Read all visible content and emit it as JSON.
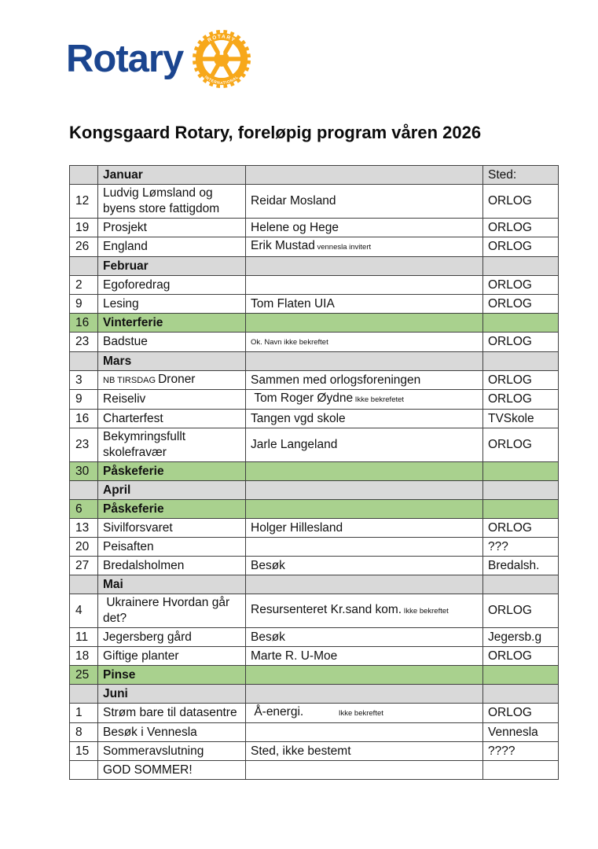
{
  "colors": {
    "rotary_blue": "#1b458f",
    "rotary_gold": "#f7a81b",
    "green": "#a9d18e",
    "gray": "#d9d9d9",
    "border": "#404040"
  },
  "logo": {
    "wordmark": "Rotary",
    "wheel_top_text": "ROTARY",
    "wheel_bottom_text": "INTERNATIONAL"
  },
  "title": "Kongsgaard Rotary, foreløpig program våren 2026",
  "table": {
    "columns": [
      "date",
      "topic",
      "speaker",
      "place"
    ],
    "rows": [
      {
        "style": "header",
        "cells": [
          {
            "t": ""
          },
          {
            "t": "Januar",
            "b": true
          },
          {
            "t": ""
          },
          {
            "t": "Sted:"
          }
        ]
      },
      {
        "style": "event",
        "cells": [
          {
            "t": "12"
          },
          {
            "t": "Ludvig Lømsland og byens store fattigdom"
          },
          {
            "t": "Reidar Mosland"
          },
          {
            "t": "ORLOG"
          }
        ]
      },
      {
        "style": "event",
        "cells": [
          {
            "t": "19"
          },
          {
            "t": "Prosjekt"
          },
          {
            "t": "Helene og Hege"
          },
          {
            "t": "ORLOG"
          }
        ]
      },
      {
        "style": "event",
        "cells": [
          {
            "t": "26"
          },
          {
            "t": "England"
          },
          {
            "t": "Erik Mustad",
            "small": "vennesla invitert"
          },
          {
            "t": "ORLOG"
          }
        ]
      },
      {
        "style": "month",
        "cells": [
          {
            "t": ""
          },
          {
            "t": "Februar",
            "b": true
          },
          {
            "t": ""
          },
          {
            "t": ""
          }
        ]
      },
      {
        "style": "event",
        "cells": [
          {
            "t": "2"
          },
          {
            "t": "Egoforedrag"
          },
          {
            "t": ""
          },
          {
            "t": "ORLOG"
          }
        ]
      },
      {
        "style": "event",
        "cells": [
          {
            "t": "9"
          },
          {
            "t": "Lesing"
          },
          {
            "t": "Tom Flaten UIA"
          },
          {
            "t": "ORLOG"
          }
        ]
      },
      {
        "style": "holiday",
        "cells": [
          {
            "t": "16"
          },
          {
            "t": "Vinterferie",
            "b": true
          },
          {
            "t": ""
          },
          {
            "t": ""
          }
        ]
      },
      {
        "style": "event",
        "cells": [
          {
            "t": "23"
          },
          {
            "t": "Badstue"
          },
          {
            "t": "Ok. Navn ikke bekreftet",
            "xs": true
          },
          {
            "t": "ORLOG"
          }
        ]
      },
      {
        "style": "month",
        "cells": [
          {
            "t": ""
          },
          {
            "t": "Mars",
            "b": true
          },
          {
            "t": ""
          },
          {
            "t": ""
          }
        ]
      },
      {
        "style": "event",
        "cells": [
          {
            "t": "3"
          },
          {
            "t": "Droner",
            "pre": "NB TIRSDAG"
          },
          {
            "t": "Sammen med orlogsforeningen",
            "size": "sm"
          },
          {
            "t": "ORLOG"
          }
        ]
      },
      {
        "style": "event",
        "cells": [
          {
            "t": "9"
          },
          {
            "t": "Reiseliv"
          },
          {
            "t": " Tom Roger Øydne",
            "small": "Ikke bekrefetet"
          },
          {
            "t": "ORLOG"
          }
        ]
      },
      {
        "style": "event",
        "cells": [
          {
            "t": "16"
          },
          {
            "t": "Charterfest"
          },
          {
            "t": "Tangen vgd skole"
          },
          {
            "t": "TVSkole"
          }
        ]
      },
      {
        "style": "event",
        "cells": [
          {
            "t": "23"
          },
          {
            "t": "Bekymringsfullt skolefravær"
          },
          {
            "t": "Jarle Langeland"
          },
          {
            "t": "ORLOG"
          }
        ]
      },
      {
        "style": "holiday",
        "cells": [
          {
            "t": "30"
          },
          {
            "t": "Påskeferie",
            "b": true
          },
          {
            "t": ""
          },
          {
            "t": ""
          }
        ]
      },
      {
        "style": "month",
        "cells": [
          {
            "t": ""
          },
          {
            "t": "April",
            "b": true
          },
          {
            "t": ""
          },
          {
            "t": ""
          }
        ]
      },
      {
        "style": "holiday",
        "cells": [
          {
            "t": "6"
          },
          {
            "t": "Påskeferie",
            "b": true
          },
          {
            "t": ""
          },
          {
            "t": ""
          }
        ]
      },
      {
        "style": "event",
        "cells": [
          {
            "t": "13"
          },
          {
            "t": "Sivilforsvaret"
          },
          {
            "t": "Holger Hillesland"
          },
          {
            "t": "ORLOG"
          }
        ]
      },
      {
        "style": "event",
        "cells": [
          {
            "t": "20"
          },
          {
            "t": "Peisaften"
          },
          {
            "t": ""
          },
          {
            "t": "???"
          }
        ]
      },
      {
        "style": "event",
        "cells": [
          {
            "t": "27"
          },
          {
            "t": "Bredalsholmen"
          },
          {
            "t": "Besøk"
          },
          {
            "t": "Bredalsh."
          }
        ]
      },
      {
        "style": "month",
        "cells": [
          {
            "t": ""
          },
          {
            "t": "Mai",
            "b": true
          },
          {
            "t": ""
          },
          {
            "t": ""
          }
        ]
      },
      {
        "style": "event",
        "cells": [
          {
            "t": "4"
          },
          {
            "t": " Ukrainere Hvordan går det?"
          },
          {
            "t": "Resursenteret Kr.sand kom.",
            "small": "Ikke bekreftet"
          },
          {
            "t": "ORLOG"
          }
        ]
      },
      {
        "style": "event",
        "cells": [
          {
            "t": "11"
          },
          {
            "t": "Jegersberg gård"
          },
          {
            "t": "Besøk"
          },
          {
            "t": "Jegersb.g"
          }
        ]
      },
      {
        "style": "event",
        "cells": [
          {
            "t": "18"
          },
          {
            "t": "Giftige planter"
          },
          {
            "t": "Marte R. U-Moe"
          },
          {
            "t": "ORLOG"
          }
        ]
      },
      {
        "style": "holiday",
        "cells": [
          {
            "t": "25"
          },
          {
            "t": "Pinse",
            "b": true
          },
          {
            "t": ""
          },
          {
            "t": ""
          }
        ]
      },
      {
        "style": "month",
        "cells": [
          {
            "t": ""
          },
          {
            "t": "Juni",
            "b": true
          },
          {
            "t": ""
          },
          {
            "t": ""
          }
        ]
      },
      {
        "style": "event",
        "cells": [
          {
            "t": "1"
          },
          {
            "t": "Strøm bare til datasentre"
          },
          {
            "t": " Å-energi.",
            "small": "Ikke bekreftet",
            "gap": true
          },
          {
            "t": "ORLOG"
          }
        ]
      },
      {
        "style": "event",
        "cells": [
          {
            "t": "8"
          },
          {
            "t": "Besøk i Vennesla"
          },
          {
            "t": ""
          },
          {
            "t": "Vennesla"
          }
        ]
      },
      {
        "style": "event",
        "cells": [
          {
            "t": "15"
          },
          {
            "t": "Sommeravslutning"
          },
          {
            "t": "Sted, ikke bestemt"
          },
          {
            "t": "????"
          }
        ]
      },
      {
        "style": "event",
        "cells": [
          {
            "t": ""
          },
          {
            "t": "GOD SOMMER!"
          },
          {
            "t": ""
          },
          {
            "t": ""
          }
        ]
      }
    ]
  }
}
